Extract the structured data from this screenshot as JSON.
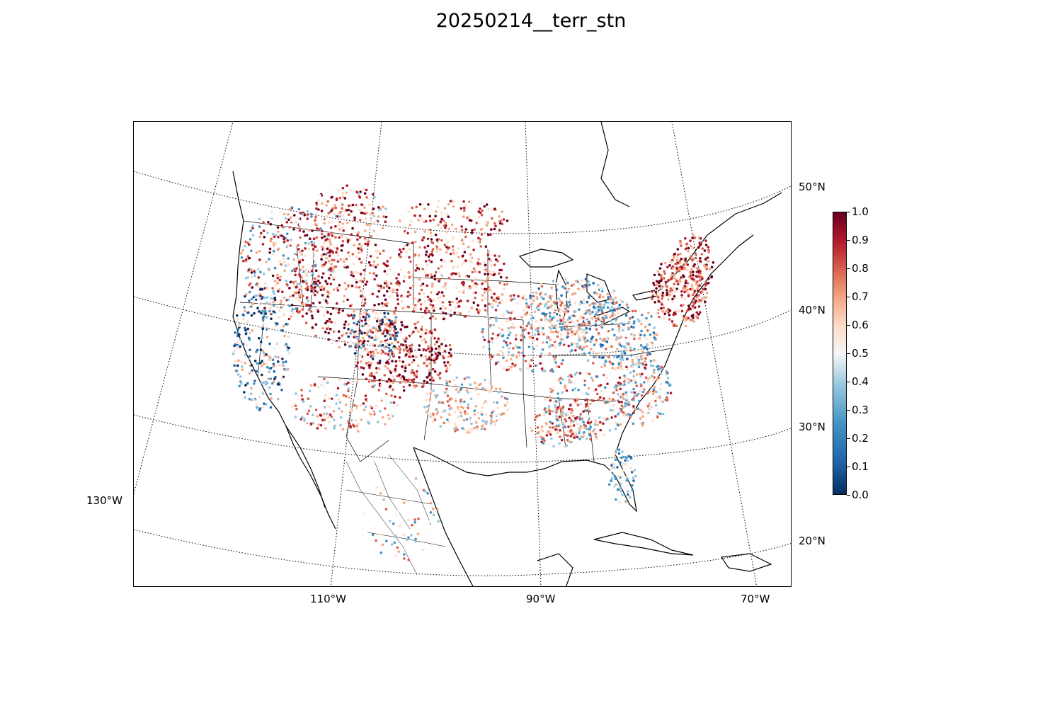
{
  "title": "20250214__terr_stn",
  "lon_labels": [
    "130°W",
    "110°W",
    "90°W",
    "70°W"
  ],
  "lat_labels": [
    "50°N",
    "40°N",
    "30°N",
    "20°N"
  ],
  "colorbar": {
    "ticks": [
      "1.0",
      "0.9",
      "0.8",
      "0.7",
      "0.6",
      "0.5",
      "0.4",
      "0.3",
      "0.2",
      "0.1",
      "0.0"
    ],
    "colormap": "RdBu_r",
    "min": 0.0,
    "max": 1.0,
    "colors": [
      "#053061",
      "#2166ac",
      "#4393c3",
      "#92c5de",
      "#f7f7f7",
      "#fddbc7",
      "#f4a582",
      "#d6604d",
      "#b2182b",
      "#67001f"
    ]
  },
  "chart_data": {
    "type": "scatter",
    "projection": "lambert conformal conic",
    "description_of_values": "station values 0.0–1.0 colored by RdBu_r colormap",
    "regions": [
      {
        "region": "Pacific Northwest",
        "dominant": "mixed, many red and blue"
      },
      {
        "region": "California coast",
        "dominant": "blue"
      },
      {
        "region": "Rockies / Colorado",
        "dominant": "dark red"
      },
      {
        "region": "Northern Plains",
        "dominant": "red / orange"
      },
      {
        "region": "Texas",
        "dominant": "light / neutral"
      },
      {
        "region": "Ohio Valley",
        "dominant": "light blue"
      },
      {
        "region": "Southeast",
        "dominant": "orange and light blue"
      },
      {
        "region": "Florida",
        "dominant": "light blue"
      },
      {
        "region": "New England",
        "dominant": "red"
      }
    ]
  }
}
